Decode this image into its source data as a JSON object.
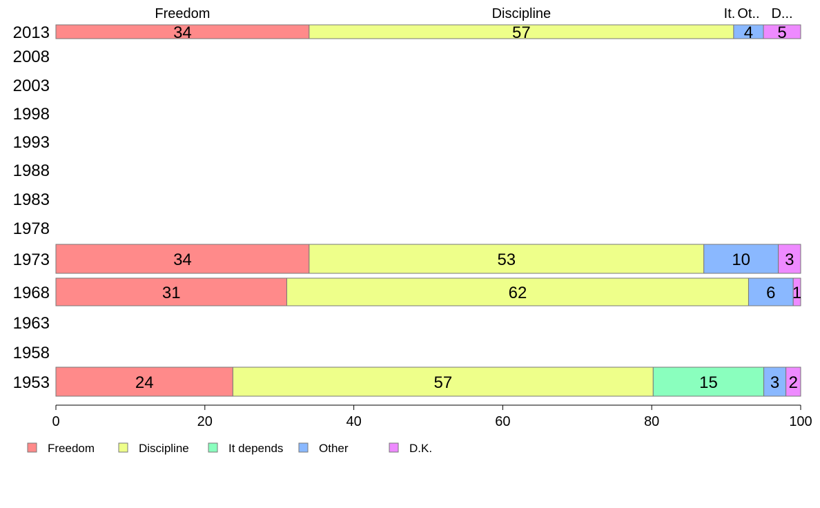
{
  "chart_data": {
    "type": "bar",
    "orientation": "horizontal",
    "stacked": "percent",
    "categories": [
      "2013",
      "2008",
      "2003",
      "1998",
      "1993",
      "1988",
      "1983",
      "1978",
      "1973",
      "1968",
      "1963",
      "1958",
      "1953"
    ],
    "series": [
      {
        "name": "Freedom",
        "color": "#FF8A8A",
        "values": [
          34,
          null,
          null,
          null,
          null,
          null,
          null,
          null,
          34,
          31,
          null,
          null,
          24
        ]
      },
      {
        "name": "Discipline",
        "color": "#EEFF8A",
        "values": [
          57,
          null,
          null,
          null,
          null,
          null,
          null,
          null,
          53,
          62,
          null,
          null,
          57
        ]
      },
      {
        "name": "It depends",
        "color": "#8AFFBE",
        "values": [
          0,
          null,
          null,
          null,
          null,
          null,
          null,
          null,
          0,
          0,
          null,
          null,
          15
        ]
      },
      {
        "name": "Other",
        "color": "#8AB8FF",
        "values": [
          4,
          null,
          null,
          null,
          null,
          null,
          null,
          null,
          10,
          6,
          null,
          null,
          3
        ]
      },
      {
        "name": "D.K.",
        "color": "#EE8AFF",
        "values": [
          5,
          null,
          null,
          null,
          null,
          null,
          null,
          null,
          3,
          1,
          null,
          null,
          2
        ]
      }
    ],
    "top_labels": [
      "Freedom",
      "Discipline",
      "It.",
      "Ot..",
      "D..."
    ],
    "xlim": [
      0,
      100
    ],
    "xticks": [
      0,
      20,
      40,
      60,
      80,
      100
    ],
    "grid": false,
    "legend_position": "bottom"
  }
}
